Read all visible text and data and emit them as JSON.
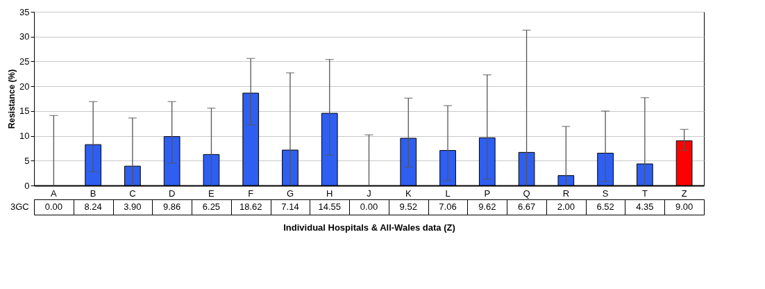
{
  "chart_data": {
    "type": "bar",
    "xlabel": "Individual Hospitals & All-Wales data (Z)",
    "ylabel": "Resistance (%)",
    "categories": [
      "A",
      "B",
      "C",
      "D",
      "E",
      "F",
      "G",
      "H",
      "J",
      "K",
      "L",
      "P",
      "Q",
      "R",
      "S",
      "T",
      "Z"
    ],
    "series": [
      {
        "name": "3GC",
        "values": [
          0.0,
          8.24,
          3.9,
          9.86,
          6.25,
          18.62,
          7.14,
          14.55,
          0.0,
          9.52,
          7.06,
          9.62,
          6.67,
          2.0,
          6.52,
          4.35,
          9.0
        ],
        "value_labels": [
          "0.00",
          "8.24",
          "3.90",
          "9.86",
          "6.25",
          "18.62",
          "7.14",
          "14.55",
          "0.00",
          "9.52",
          "7.06",
          "9.62",
          "6.67",
          "2.00",
          "6.52",
          "4.35",
          "9.00"
        ],
        "colors": [
          "#2f5ff0",
          "#2f5ff0",
          "#2f5ff0",
          "#2f5ff0",
          "#2f5ff0",
          "#2f5ff0",
          "#2f5ff0",
          "#2f5ff0",
          "#2f5ff0",
          "#2f5ff0",
          "#2f5ff0",
          "#2f5ff0",
          "#2f5ff0",
          "#2f5ff0",
          "#2f5ff0",
          "#2f5ff0",
          "#ff0000"
        ],
        "errors": [
          [
            0,
            14.1
          ],
          [
            2.8,
            16.9
          ],
          [
            0,
            13.6
          ],
          [
            4.5,
            16.9
          ],
          [
            0,
            15.6
          ],
          [
            12.2,
            25.6
          ],
          [
            0,
            22.7
          ],
          [
            6.1,
            25.4
          ],
          [
            0,
            10.2
          ],
          [
            3.7,
            17.6
          ],
          [
            1.0,
            16.1
          ],
          [
            1.3,
            22.3
          ],
          [
            0,
            31.3
          ],
          [
            0,
            11.9
          ],
          [
            0.8,
            15.0
          ],
          [
            0,
            17.7
          ],
          [
            7.1,
            11.3
          ]
        ]
      }
    ],
    "ylim": [
      0,
      35
    ],
    "yticks": [
      0,
      5,
      10,
      15,
      20,
      25,
      30,
      35
    ],
    "grid": "y",
    "legend": "bottom"
  }
}
